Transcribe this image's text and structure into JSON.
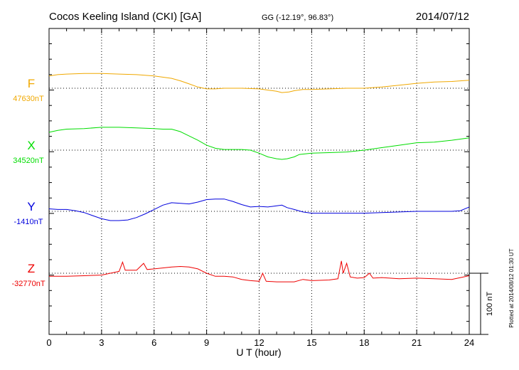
{
  "header": {
    "station": "Cocos Keeling Island (CKI)  [GA]",
    "coords": "GG (-12.19°,  96.83°)",
    "date": "2014/07/12"
  },
  "side_note": "Plotted at 2014/08/12 01:30 UT",
  "scale_bar_label": "100 nT",
  "chart_data": {
    "type": "line",
    "xlabel": "U T (hour)",
    "xlim": [
      0,
      24
    ],
    "xticks": [
      0,
      3,
      6,
      9,
      12,
      15,
      18,
      21,
      24
    ],
    "xtick_labels": [
      "0",
      "3",
      "6",
      "9",
      "12",
      "15",
      "18",
      "21",
      "24"
    ],
    "nT_per_division": 100,
    "grid": true,
    "series": [
      {
        "name": "F",
        "baseline_label": "47630nT",
        "color": "#f0a800",
        "baseline_nT": 47630,
        "points": [
          [
            0,
            47650
          ],
          [
            0.5,
            47652
          ],
          [
            1,
            47653
          ],
          [
            2,
            47654
          ],
          [
            3,
            47654
          ],
          [
            4,
            47653
          ],
          [
            5,
            47652
          ],
          [
            6,
            47650
          ],
          [
            7,
            47646
          ],
          [
            7.5,
            47642
          ],
          [
            8,
            47637
          ],
          [
            8.5,
            47632
          ],
          [
            9,
            47629
          ],
          [
            9.5,
            47629
          ],
          [
            10,
            47630
          ],
          [
            11,
            47630
          ],
          [
            12,
            47629
          ],
          [
            12.5,
            47627
          ],
          [
            13,
            47625
          ],
          [
            13.3,
            47623
          ],
          [
            13.7,
            47624
          ],
          [
            14,
            47626
          ],
          [
            14.5,
            47628
          ],
          [
            15,
            47628
          ],
          [
            16,
            47629
          ],
          [
            17,
            47630
          ],
          [
            18,
            47630
          ],
          [
            19,
            47632
          ],
          [
            20,
            47635
          ],
          [
            21,
            47638
          ],
          [
            22,
            47640
          ],
          [
            23,
            47641
          ],
          [
            24,
            47643
          ]
        ]
      },
      {
        "name": "X",
        "baseline_label": "34520nT",
        "color": "#00dd00",
        "baseline_nT": 34520,
        "points": [
          [
            0,
            34549
          ],
          [
            0.5,
            34552
          ],
          [
            1,
            34554
          ],
          [
            2,
            34555
          ],
          [
            3,
            34557
          ],
          [
            4,
            34557
          ],
          [
            5,
            34556
          ],
          [
            6,
            34555
          ],
          [
            6.5,
            34554
          ],
          [
            7,
            34554
          ],
          [
            7.5,
            34550
          ],
          [
            8,
            34543
          ],
          [
            8.5,
            34536
          ],
          [
            9,
            34528
          ],
          [
            9.5,
            34523
          ],
          [
            10,
            34521
          ],
          [
            11,
            34521
          ],
          [
            11.5,
            34520
          ],
          [
            12,
            34515
          ],
          [
            12.5,
            34509
          ],
          [
            13,
            34506
          ],
          [
            13.3,
            34505
          ],
          [
            13.6,
            34506
          ],
          [
            14,
            34509
          ],
          [
            14.3,
            34513
          ],
          [
            15,
            34515
          ],
          [
            16,
            34516
          ],
          [
            17,
            34517
          ],
          [
            18,
            34520
          ],
          [
            19,
            34524
          ],
          [
            20,
            34528
          ],
          [
            21,
            34532
          ],
          [
            22,
            34533
          ],
          [
            23,
            34536
          ],
          [
            24,
            34540
          ]
        ]
      },
      {
        "name": "Y",
        "baseline_label": "-1410nT",
        "color": "#0000dd",
        "baseline_nT": -1410,
        "points": [
          [
            0,
            -1406
          ],
          [
            0.5,
            -1407
          ],
          [
            1,
            -1407
          ],
          [
            1.5,
            -1409
          ],
          [
            2,
            -1412
          ],
          [
            2.5,
            -1417
          ],
          [
            3,
            -1422
          ],
          [
            3.5,
            -1425
          ],
          [
            4,
            -1425
          ],
          [
            4.5,
            -1424
          ],
          [
            5,
            -1420
          ],
          [
            5.5,
            -1414
          ],
          [
            6,
            -1407
          ],
          [
            6.5,
            -1400
          ],
          [
            7,
            -1396
          ],
          [
            7.5,
            -1397
          ],
          [
            8,
            -1398
          ],
          [
            8.5,
            -1395
          ],
          [
            9,
            -1391
          ],
          [
            9.5,
            -1390
          ],
          [
            10,
            -1390
          ],
          [
            10.5,
            -1394
          ],
          [
            11,
            -1399
          ],
          [
            11.5,
            -1403
          ],
          [
            12,
            -1402
          ],
          [
            12.5,
            -1403
          ],
          [
            13,
            -1401
          ],
          [
            13.3,
            -1400
          ],
          [
            13.6,
            -1404
          ],
          [
            14,
            -1407
          ],
          [
            14.5,
            -1411
          ],
          [
            15,
            -1413
          ],
          [
            16,
            -1413
          ],
          [
            17,
            -1413
          ],
          [
            18,
            -1413
          ],
          [
            19,
            -1412
          ],
          [
            20,
            -1411
          ],
          [
            21,
            -1410
          ],
          [
            22,
            -1410
          ],
          [
            23,
            -1410
          ],
          [
            23.5,
            -1409
          ],
          [
            24,
            -1403
          ]
        ]
      },
      {
        "name": "Z",
        "baseline_label": "-32770nT",
        "color": "#ee0000",
        "baseline_nT": -32770,
        "points": [
          [
            0,
            -32775
          ],
          [
            1,
            -32775
          ],
          [
            2,
            -32774
          ],
          [
            3,
            -32773
          ],
          [
            3.5,
            -32770
          ],
          [
            4,
            -32767
          ],
          [
            4.2,
            -32752
          ],
          [
            4.35,
            -32765
          ],
          [
            5,
            -32765
          ],
          [
            5.4,
            -32754
          ],
          [
            5.6,
            -32764
          ],
          [
            6,
            -32763
          ],
          [
            7,
            -32760
          ],
          [
            7.5,
            -32759
          ],
          [
            8,
            -32760
          ],
          [
            8.5,
            -32763
          ],
          [
            9,
            -32770
          ],
          [
            9.5,
            -32775
          ],
          [
            10,
            -32775
          ],
          [
            10.5,
            -32776
          ],
          [
            11,
            -32780
          ],
          [
            11.5,
            -32782
          ],
          [
            12,
            -32783
          ],
          [
            12.2,
            -32770
          ],
          [
            12.4,
            -32783
          ],
          [
            13,
            -32784
          ],
          [
            14,
            -32784
          ],
          [
            14.5,
            -32780
          ],
          [
            15,
            -32782
          ],
          [
            16,
            -32781
          ],
          [
            16.5,
            -32779
          ],
          [
            16.7,
            -32750
          ],
          [
            16.8,
            -32770
          ],
          [
            17,
            -32754
          ],
          [
            17.2,
            -32776
          ],
          [
            17.6,
            -32778
          ],
          [
            18,
            -32777
          ],
          [
            18.3,
            -32770
          ],
          [
            18.5,
            -32778
          ],
          [
            19,
            -32777
          ],
          [
            20,
            -32779
          ],
          [
            21,
            -32778
          ],
          [
            22,
            -32779
          ],
          [
            23,
            -32780
          ],
          [
            23.5,
            -32777
          ],
          [
            24,
            -32774
          ]
        ]
      }
    ]
  }
}
